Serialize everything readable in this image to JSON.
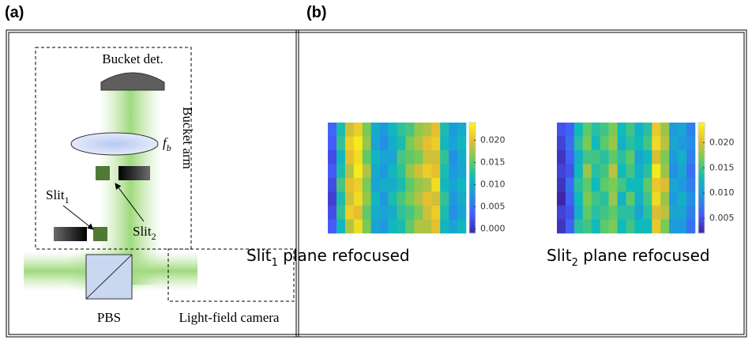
{
  "panels": [
    "(a)",
    "(b)"
  ],
  "diagram": {
    "bucket_det": "Bucket det.",
    "lens": "f",
    "lens_sub": "b",
    "bucket_arm": "Bucket arm",
    "slit1": "Slit",
    "slit1_sub": "1",
    "slit2": "Slit",
    "slit2_sub": "2",
    "pbs": "PBS",
    "camera": "Light-field camera"
  },
  "heatmaps": [
    {
      "title": "Slit",
      "title_sub": "1",
      "title_rest": " plane refocused",
      "zlim": [
        -0.001,
        0.024
      ],
      "ticks": [
        {
          "value": 0,
          "label": "0.000"
        },
        {
          "value": 0.005,
          "label": "0.005"
        },
        {
          "value": 0.01,
          "label": "0.010"
        },
        {
          "value": 0.015,
          "label": "0.015"
        },
        {
          "value": 0.02,
          "label": "0.020"
        }
      ],
      "values": [
        [
          0.004,
          0.012,
          0.019,
          0.021,
          0.016,
          0.01,
          0.008,
          0.011,
          0.013,
          0.014,
          0.017,
          0.018,
          0.02,
          0.012,
          0.008,
          0.01
        ],
        [
          0.003,
          0.013,
          0.021,
          0.023,
          0.017,
          0.009,
          0.007,
          0.01,
          0.012,
          0.016,
          0.018,
          0.02,
          0.021,
          0.011,
          0.009,
          0.011
        ],
        [
          0.002,
          0.011,
          0.02,
          0.022,
          0.015,
          0.011,
          0.009,
          0.009,
          0.014,
          0.015,
          0.016,
          0.019,
          0.019,
          0.013,
          0.007,
          0.01
        ],
        [
          0.003,
          0.012,
          0.018,
          0.023,
          0.018,
          0.01,
          0.008,
          0.011,
          0.013,
          0.017,
          0.019,
          0.021,
          0.02,
          0.012,
          0.008,
          0.009
        ],
        [
          0.002,
          0.014,
          0.02,
          0.021,
          0.016,
          0.009,
          0.01,
          0.01,
          0.012,
          0.015,
          0.017,
          0.018,
          0.022,
          0.011,
          0.009,
          0.011
        ],
        [
          0.001,
          0.012,
          0.019,
          0.022,
          0.017,
          0.011,
          0.008,
          0.012,
          0.014,
          0.016,
          0.018,
          0.02,
          0.019,
          0.013,
          0.008,
          0.01
        ],
        [
          0.002,
          0.013,
          0.021,
          0.02,
          0.015,
          0.01,
          0.009,
          0.01,
          0.013,
          0.014,
          0.016,
          0.019,
          0.021,
          0.012,
          0.007,
          0.009
        ],
        [
          0.003,
          0.011,
          0.018,
          0.022,
          0.016,
          0.009,
          0.008,
          0.011,
          0.012,
          0.015,
          0.018,
          0.018,
          0.02,
          0.011,
          0.009,
          0.011
        ]
      ]
    },
    {
      "title": "Slit",
      "title_sub": "2",
      "title_rest": " plane refocused",
      "zlim": [
        0.002,
        0.024
      ],
      "ticks": [
        {
          "value": 0.005,
          "label": "0.005"
        },
        {
          "value": 0.01,
          "label": "0.010"
        },
        {
          "value": 0.015,
          "label": "0.015"
        },
        {
          "value": 0.02,
          "label": "0.020"
        }
      ],
      "values": [
        [
          0.005,
          0.006,
          0.013,
          0.016,
          0.014,
          0.015,
          0.017,
          0.013,
          0.015,
          0.012,
          0.014,
          0.021,
          0.018,
          0.01,
          0.011,
          0.008
        ],
        [
          0.004,
          0.007,
          0.014,
          0.017,
          0.013,
          0.016,
          0.018,
          0.012,
          0.014,
          0.013,
          0.015,
          0.022,
          0.019,
          0.011,
          0.01,
          0.009
        ],
        [
          0.003,
          0.006,
          0.012,
          0.015,
          0.015,
          0.014,
          0.016,
          0.014,
          0.016,
          0.011,
          0.013,
          0.02,
          0.017,
          0.01,
          0.012,
          0.008
        ],
        [
          0.004,
          0.005,
          0.013,
          0.018,
          0.014,
          0.015,
          0.019,
          0.013,
          0.015,
          0.012,
          0.014,
          0.023,
          0.018,
          0.009,
          0.011,
          0.007
        ],
        [
          0.003,
          0.007,
          0.014,
          0.016,
          0.013,
          0.016,
          0.017,
          0.015,
          0.013,
          0.013,
          0.016,
          0.021,
          0.02,
          0.011,
          0.01,
          0.008
        ],
        [
          0.002,
          0.006,
          0.013,
          0.017,
          0.015,
          0.014,
          0.018,
          0.012,
          0.016,
          0.012,
          0.015,
          0.022,
          0.018,
          0.01,
          0.012,
          0.009
        ],
        [
          0.004,
          0.005,
          0.012,
          0.016,
          0.014,
          0.015,
          0.016,
          0.014,
          0.014,
          0.011,
          0.014,
          0.02,
          0.019,
          0.011,
          0.011,
          0.008
        ],
        [
          0.003,
          0.006,
          0.014,
          0.015,
          0.013,
          0.016,
          0.017,
          0.013,
          0.015,
          0.013,
          0.013,
          0.021,
          0.017,
          0.01,
          0.01,
          0.007
        ]
      ]
    }
  ]
}
